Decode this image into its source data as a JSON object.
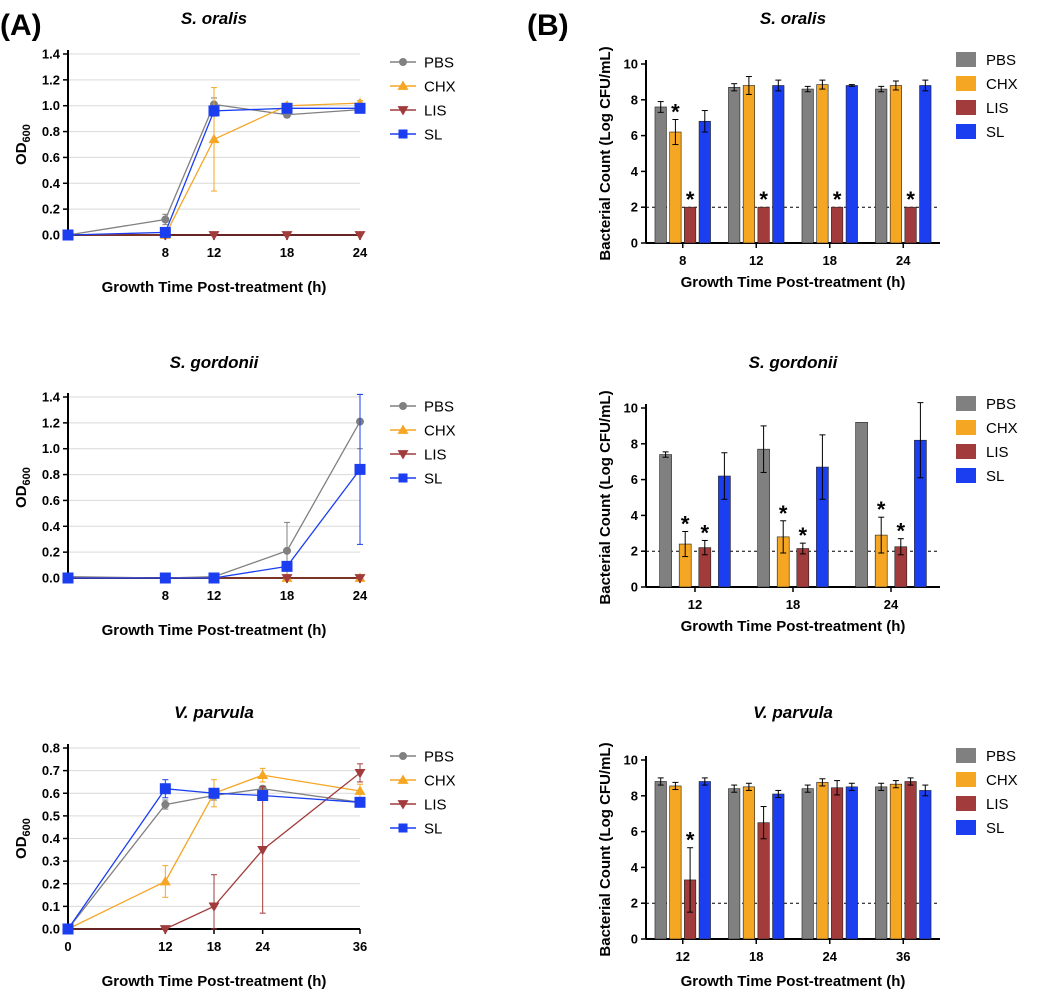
{
  "figure": {
    "label_a": "(A)",
    "label_b": "(B)"
  },
  "colors": {
    "PBS": "#808080",
    "CHX": "#f5a623",
    "LIS": "#a23b3b",
    "SL": "#1a3ef0",
    "grid": "#d9d9d9",
    "axis": "#000000"
  },
  "chart_data": [
    {
      "id": "A1",
      "type": "line",
      "title": "S. oralis",
      "xlabel": "Growth Time Post-treatment (h)",
      "ylabel": "OD",
      "ylabel_sub": "600",
      "x": [
        0,
        8,
        12,
        18,
        24
      ],
      "xticks": [
        8,
        12,
        18,
        24
      ],
      "xlim": [
        0,
        24
      ],
      "ylim": [
        0,
        1.4
      ],
      "yticks": [
        0.0,
        0.2,
        0.4,
        0.6,
        0.8,
        1.0,
        1.2,
        1.4
      ],
      "grid": true,
      "legend_position": "right",
      "series": [
        {
          "name": "PBS",
          "values": [
            0.0,
            0.12,
            1.01,
            0.93,
            0.97
          ],
          "err": [
            0,
            0.04,
            0.05,
            0.02,
            0.02
          ]
        },
        {
          "name": "CHX",
          "values": [
            0.0,
            0.0,
            0.74,
            1.0,
            1.02
          ],
          "err": [
            0,
            0,
            0.4,
            0.02,
            0.02
          ]
        },
        {
          "name": "LIS",
          "values": [
            0.0,
            0.0,
            0.0,
            0.0,
            0.0
          ],
          "err": [
            0,
            0,
            0,
            0,
            0
          ]
        },
        {
          "name": "SL",
          "values": [
            0.0,
            0.02,
            0.96,
            0.98,
            0.98
          ],
          "err": [
            0,
            0,
            0.04,
            0.02,
            0.02
          ]
        }
      ]
    },
    {
      "id": "A2",
      "type": "line",
      "title": "S. gordonii",
      "xlabel": "Growth Time Post-treatment (h)",
      "ylabel": "OD",
      "ylabel_sub": "600",
      "x": [
        0,
        8,
        12,
        18,
        24
      ],
      "xticks": [
        8,
        12,
        18,
        24
      ],
      "xlim": [
        0,
        24
      ],
      "ylim": [
        0,
        1.4
      ],
      "yticks": [
        0.0,
        0.2,
        0.4,
        0.6,
        0.8,
        1.0,
        1.2,
        1.4
      ],
      "grid": true,
      "legend_position": "right",
      "series": [
        {
          "name": "PBS",
          "values": [
            0.01,
            0.0,
            0.01,
            0.21,
            1.21
          ],
          "err": [
            0,
            0,
            0,
            0.22,
            0.21
          ]
        },
        {
          "name": "CHX",
          "values": [
            0.0,
            0.0,
            0.0,
            0.0,
            0.0
          ],
          "err": [
            0,
            0,
            0,
            0,
            0
          ]
        },
        {
          "name": "LIS",
          "values": [
            0.0,
            0.0,
            0.0,
            0.0,
            0.0
          ],
          "err": [
            0,
            0,
            0,
            0,
            0
          ]
        },
        {
          "name": "SL",
          "values": [
            0.0,
            0.0,
            0.0,
            0.09,
            0.84
          ],
          "err": [
            0,
            0,
            0,
            0,
            0.58
          ]
        }
      ]
    },
    {
      "id": "A3",
      "type": "line",
      "title": "V. parvula",
      "xlabel": "Growth Time Post-treatment (h)",
      "ylabel": "OD",
      "ylabel_sub": "600",
      "x": [
        0,
        12,
        18,
        24,
        36
      ],
      "xticks": [
        0,
        12,
        18,
        24,
        36
      ],
      "xlim": [
        0,
        36
      ],
      "ylim": [
        0,
        0.8
      ],
      "yticks": [
        0.0,
        0.1,
        0.2,
        0.3,
        0.4,
        0.5,
        0.6,
        0.7,
        0.8
      ],
      "grid": true,
      "legend_position": "right",
      "series": [
        {
          "name": "PBS",
          "values": [
            0.0,
            0.55,
            0.59,
            0.62,
            0.56
          ],
          "err": [
            0,
            0.02,
            0.02,
            0.01,
            0.01
          ]
        },
        {
          "name": "CHX",
          "values": [
            0.0,
            0.21,
            0.6,
            0.68,
            0.61
          ],
          "err": [
            0,
            0.07,
            0.06,
            0.03,
            0.03
          ]
        },
        {
          "name": "LIS",
          "values": [
            0.0,
            0.0,
            0.1,
            0.35,
            0.69
          ],
          "err": [
            0,
            0,
            0.14,
            0.28,
            0.04
          ]
        },
        {
          "name": "SL",
          "values": [
            0.0,
            0.62,
            0.6,
            0.59,
            0.56
          ],
          "err": [
            0,
            0.04,
            0.02,
            0.02,
            0.01
          ]
        }
      ]
    },
    {
      "id": "B1",
      "type": "bar",
      "title": "S. oralis",
      "xlabel": "Growth Time Post-treatment (h)",
      "ylabel": "Bacterial Count (Log CFU/mL)",
      "categories": [
        "8",
        "12",
        "18",
        "24"
      ],
      "ylim": [
        0,
        10
      ],
      "yticks": [
        0,
        2,
        4,
        6,
        8,
        10
      ],
      "detection_limit": 2,
      "legend_position": "right",
      "series": [
        {
          "name": "PBS",
          "values": [
            7.6,
            8.7,
            8.6,
            8.6
          ],
          "err": [
            0.3,
            0.2,
            0.15,
            0.15
          ],
          "sig": [
            false,
            false,
            false,
            false
          ]
        },
        {
          "name": "CHX",
          "values": [
            6.2,
            8.8,
            8.85,
            8.8
          ],
          "err": [
            0.7,
            0.5,
            0.25,
            0.25
          ],
          "sig": [
            true,
            false,
            false,
            false
          ]
        },
        {
          "name": "LIS",
          "values": [
            2.0,
            2.0,
            2.0,
            2.0
          ],
          "err": [
            0,
            0,
            0,
            0
          ],
          "sig": [
            true,
            true,
            true,
            true
          ]
        },
        {
          "name": "SL",
          "values": [
            6.8,
            8.8,
            8.8,
            8.8
          ],
          "err": [
            0.6,
            0.3,
            0.05,
            0.3
          ],
          "sig": [
            false,
            false,
            false,
            false
          ]
        }
      ]
    },
    {
      "id": "B2",
      "type": "bar",
      "title": "S. gordonii",
      "xlabel": "Growth Time Post-treatment (h)",
      "ylabel": "Bacterial Count (Log CFU/mL)",
      "categories": [
        "12",
        "18",
        "24"
      ],
      "ylim": [
        0,
        10
      ],
      "yticks": [
        0,
        2,
        4,
        6,
        8,
        10
      ],
      "detection_limit": 2,
      "legend_position": "right",
      "series": [
        {
          "name": "PBS",
          "values": [
            7.4,
            7.7,
            9.2
          ],
          "err": [
            0.15,
            1.3,
            0.0
          ],
          "sig": [
            false,
            false,
            false
          ]
        },
        {
          "name": "CHX",
          "values": [
            2.4,
            2.8,
            2.9
          ],
          "err": [
            0.7,
            0.9,
            1.0
          ],
          "sig": [
            true,
            true,
            true
          ]
        },
        {
          "name": "LIS",
          "values": [
            2.2,
            2.15,
            2.25
          ],
          "err": [
            0.4,
            0.3,
            0.45
          ],
          "sig": [
            true,
            true,
            true
          ]
        },
        {
          "name": "SL",
          "values": [
            6.2,
            6.7,
            8.2
          ],
          "err": [
            1.3,
            1.8,
            2.1
          ],
          "sig": [
            false,
            false,
            false
          ]
        }
      ]
    },
    {
      "id": "B3",
      "type": "bar",
      "title": "V. parvula",
      "xlabel": "Growth Time Post-treatment (h)",
      "ylabel": "Bacterial Count (Log CFU/mL)",
      "categories": [
        "12",
        "18",
        "24",
        "36"
      ],
      "ylim": [
        0,
        10
      ],
      "yticks": [
        0,
        2,
        4,
        6,
        8,
        10
      ],
      "detection_limit": 2,
      "legend_position": "right",
      "series": [
        {
          "name": "PBS",
          "values": [
            8.8,
            8.4,
            8.4,
            8.5
          ],
          "err": [
            0.2,
            0.2,
            0.2,
            0.2
          ],
          "sig": [
            false,
            false,
            false,
            false
          ]
        },
        {
          "name": "CHX",
          "values": [
            8.55,
            8.5,
            8.75,
            8.65
          ],
          "err": [
            0.2,
            0.2,
            0.2,
            0.2
          ],
          "sig": [
            false,
            false,
            false,
            false
          ]
        },
        {
          "name": "LIS",
          "values": [
            3.3,
            6.5,
            8.45,
            8.8
          ],
          "err": [
            1.8,
            0.9,
            0.4,
            0.2
          ],
          "sig": [
            true,
            false,
            false,
            false
          ]
        },
        {
          "name": "SL",
          "values": [
            8.8,
            8.1,
            8.5,
            8.3
          ],
          "err": [
            0.2,
            0.2,
            0.2,
            0.3
          ],
          "sig": [
            false,
            false,
            false,
            false
          ]
        }
      ]
    }
  ]
}
